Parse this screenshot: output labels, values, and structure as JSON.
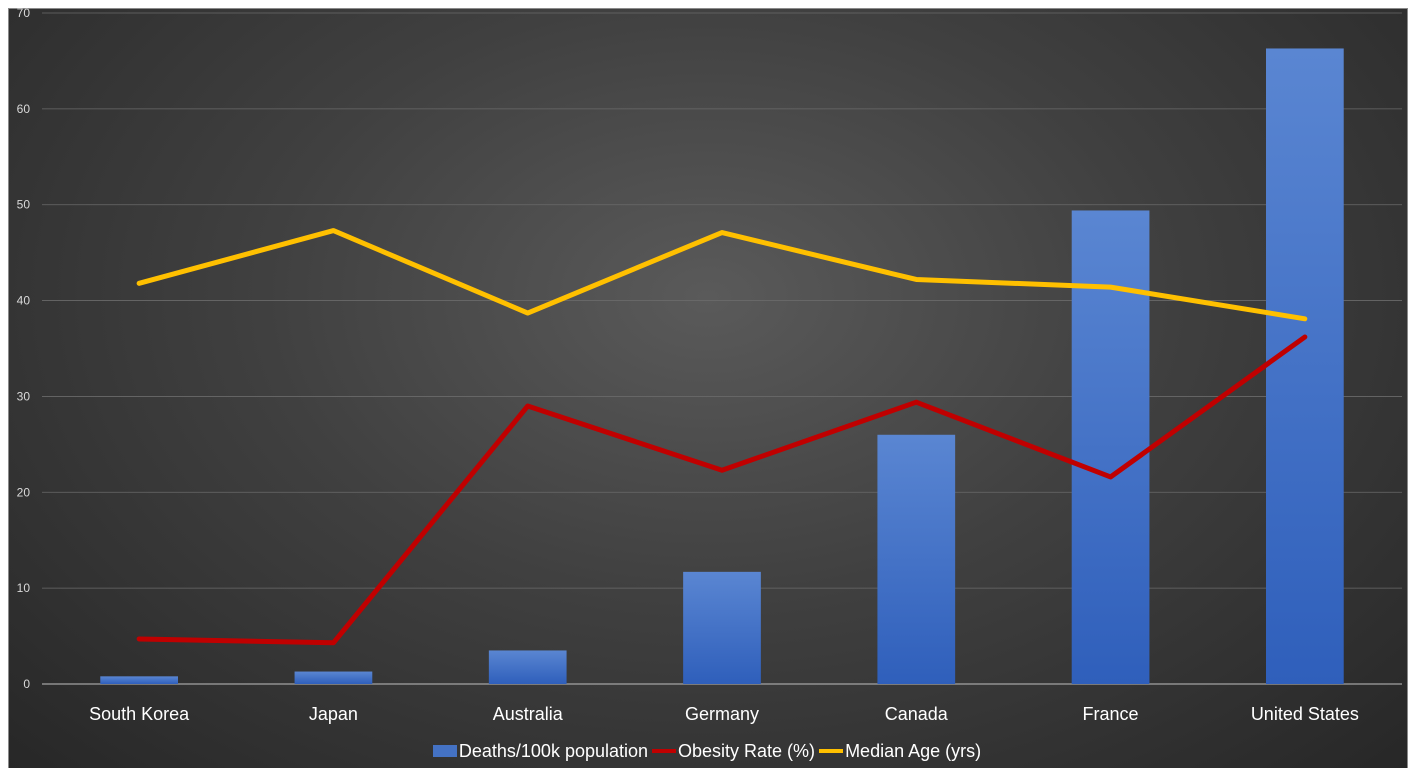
{
  "chart_data": {
    "type": "bar",
    "categories": [
      "South Korea",
      "Japan",
      "Australia",
      "Germany",
      "Canada",
      "France",
      "United States"
    ],
    "series": [
      {
        "name": "Deaths/100k population",
        "type": "bar",
        "color": "#4472c4",
        "values": [
          0.8,
          1.3,
          3.5,
          11.7,
          26.0,
          49.4,
          66.3
        ]
      },
      {
        "name": "Obesity Rate (%)",
        "type": "line",
        "color": "#c00000",
        "values": [
          4.7,
          4.3,
          29.0,
          22.3,
          29.4,
          21.6,
          36.2
        ]
      },
      {
        "name": "Median Age (yrs)",
        "type": "line",
        "color": "#ffc000",
        "values": [
          41.8,
          47.3,
          38.7,
          47.1,
          42.2,
          41.4,
          38.1
        ]
      }
    ],
    "ylim": [
      0,
      70
    ],
    "yticks": [
      0,
      10,
      20,
      30,
      40,
      50,
      60,
      70
    ],
    "xlabel": "",
    "ylabel": "",
    "grid": true,
    "legend_position": "bottom"
  }
}
